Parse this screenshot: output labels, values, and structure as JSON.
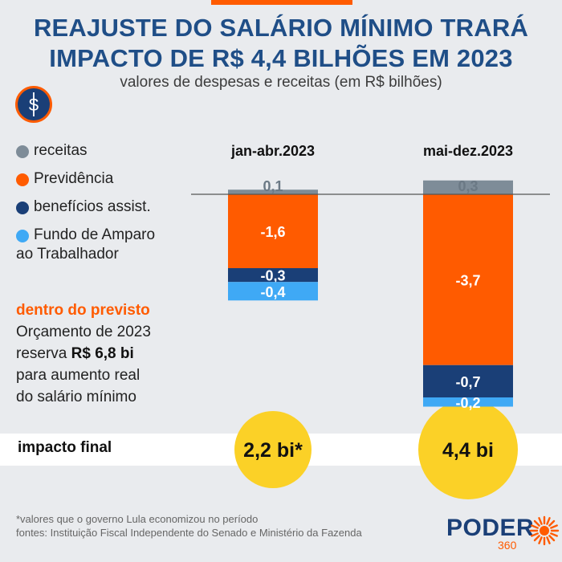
{
  "header": {
    "title_line1": "REAJUSTE DO SALÁRIO MÍNIMO TRARÁ",
    "title_line2": "IMPACTO DE R$ 4,4 BILHÕES EM 2023",
    "subtitle": "valores de despesas e receitas (em R$ bilhões)"
  },
  "icon": {
    "symbol": "$",
    "name": "money-icon"
  },
  "legend": [
    {
      "label": "receitas",
      "color": "#7e8c98"
    },
    {
      "label": "Previdência",
      "color": "#ff5b00"
    },
    {
      "label": "benefícios assist.",
      "color": "#1a3f77"
    },
    {
      "label_line1": "Fundo de Amparo",
      "label_line2": "ao Trabalhador",
      "color": "#3fa9f5"
    }
  ],
  "note": {
    "highlight": "dentro do previsto",
    "line1": "Orçamento de 2023",
    "line2_prefix": "reserva ",
    "line2_bold": "R$ 6,8 bi",
    "line3": "para aumento real",
    "line4": "do salário mínimo"
  },
  "impact": {
    "label": "impacto final",
    "values": [
      "2,2 bi*",
      "4,4 bi"
    ],
    "bubble_color": "#fbd127"
  },
  "chart_data": {
    "type": "bar",
    "stacked": true,
    "title": "valores de despesas e receitas (em R$ bilhões)",
    "categories": [
      "jan-abr.2023",
      "mai-dez.2023"
    ],
    "series": [
      {
        "name": "receitas",
        "color": "#7e8c98",
        "values": [
          0.1,
          0.3
        ],
        "labels": [
          "0,1",
          "0,3"
        ]
      },
      {
        "name": "Previdência",
        "color": "#ff5b00",
        "values": [
          -1.6,
          -3.7
        ],
        "labels": [
          "-1,6",
          "-3,7"
        ]
      },
      {
        "name": "benefícios assist.",
        "color": "#1a3f77",
        "values": [
          -0.3,
          -0.7
        ],
        "labels": [
          "-0,3",
          "-0,7"
        ]
      },
      {
        "name": "Fundo de Amparo ao Trabalhador",
        "color": "#3fa9f5",
        "values": [
          -0.4,
          -0.2
        ],
        "labels": [
          "-0,4",
          "-0,2"
        ]
      }
    ],
    "ylim": [
      -4.6,
      0.3
    ]
  },
  "footer": {
    "note": "*valores que o governo Lula economizou no período",
    "sources": "fontes: Instituição Fiscal Independente do Senado e Ministério da Fazenda"
  },
  "logo": {
    "text": "PODER",
    "number": "360",
    "color": "#ff5b00"
  }
}
